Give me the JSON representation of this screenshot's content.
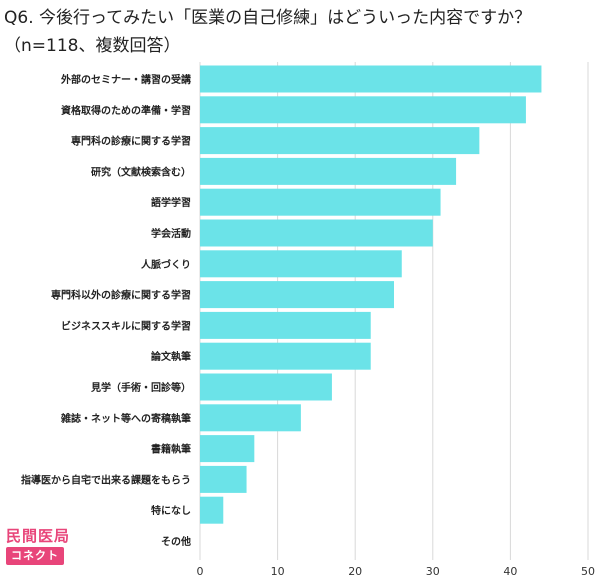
{
  "title": "Q6. 今後行ってみたい「医業の自己修練」はどういった内容ですか？（n=118、複数回答）",
  "logo": {
    "top": "民間医局",
    "bottom": "コネクト"
  },
  "chart_data": {
    "type": "bar",
    "orientation": "horizontal",
    "categories": [
      "外部のセミナー・講習の受講",
      "資格取得のための準備・学習",
      "専門科の診療に関する学習",
      "研究（文献検索含む）",
      "語学学習",
      "学会活動",
      "人脈づくり",
      "専門科以外の診療に関する学習",
      "ビジネススキルに関する学習",
      "論文執筆",
      "見学（手術・回診等）",
      "雑誌・ネット等への寄稿執筆",
      "書籍執筆",
      "指導医から自宅で出来る課題をもらう",
      "特になし",
      "その他"
    ],
    "values": [
      44,
      42,
      36,
      33,
      31,
      30,
      26,
      25,
      22,
      22,
      17,
      13,
      7,
      6,
      3,
      0
    ],
    "xlim": [
      0,
      50
    ],
    "xticks": [
      0,
      10,
      20,
      30,
      40,
      50
    ],
    "grid": true,
    "legend": "none",
    "bar_color": "#6be3e8",
    "grid_color": "#d8d8d8"
  }
}
